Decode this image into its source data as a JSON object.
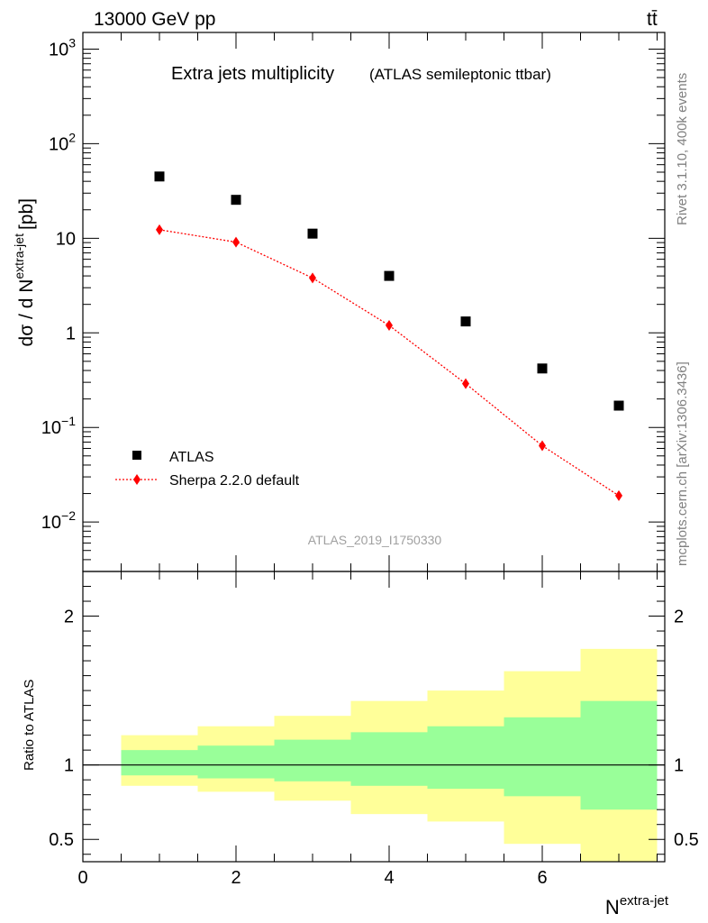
{
  "header": {
    "left": "13000 GeV pp",
    "right": "tt̄"
  },
  "side": {
    "rivet": "Rivet 3.1.10,  400k events",
    "mcplots": "mcplots.cern.ch [arXiv:1306.3436]"
  },
  "chart_data": [
    {
      "type": "scatter",
      "title": "Extra jets multiplicity",
      "subtitle": "(ATLAS semileptonic ttbar)",
      "watermark": "ATLAS_2019_I1750330",
      "ylabel_main": "dσ / d N",
      "ylabel_sup": "extra-jet",
      "ylabel_unit": "[pb]",
      "yscale": "log",
      "ylim": [
        0.003,
        1500
      ],
      "xlim": [
        0,
        7.6
      ],
      "y_ticks": [
        {
          "v": 0.01,
          "base": "10",
          "exp": "−2"
        },
        {
          "v": 0.1,
          "base": "10",
          "exp": "−1"
        },
        {
          "v": 1,
          "base": "1",
          "exp": ""
        },
        {
          "v": 10,
          "base": "10",
          "exp": ""
        },
        {
          "v": 100,
          "base": "10",
          "exp": "2"
        },
        {
          "v": 1000,
          "base": "10",
          "exp": "3"
        }
      ],
      "legend_position": "bottom-left",
      "series": [
        {
          "name": "ATLAS",
          "color": "#000000",
          "marker": "square",
          "x": [
            1,
            2,
            3,
            4,
            5,
            6,
            7
          ],
          "y": [
            45,
            25.5,
            11.2,
            4.0,
            1.32,
            0.42,
            0.17
          ]
        },
        {
          "name": "Sherpa 2.2.0 default",
          "color": "#ff0000",
          "marker": "diamond",
          "line": "dotted",
          "x": [
            1,
            2,
            3,
            4,
            5,
            6,
            7
          ],
          "y": [
            12.3,
            9.1,
            3.8,
            1.2,
            0.29,
            0.064,
            0.019
          ]
        }
      ]
    },
    {
      "type": "area",
      "ylabel": "Ratio to ATLAS",
      "xlabel_main": "N",
      "xlabel_sup": "extra-jet",
      "ylim": [
        0.35,
        2.3
      ],
      "xlim": [
        0,
        7.6
      ],
      "x_ticks": [
        "0",
        "2",
        "4",
        "6"
      ],
      "x_tick_values": [
        0,
        2,
        4,
        6
      ],
      "y_ticks": [
        "0.5",
        "1",
        "2"
      ],
      "y_tick_values": [
        0.5,
        1,
        2
      ],
      "reference": 1,
      "bins": [
        {
          "lo": 0.5,
          "hi": 1.5,
          "band_inner": [
            0.93,
            1.1
          ],
          "band_outer": [
            0.86,
            1.2
          ]
        },
        {
          "lo": 1.5,
          "hi": 2.5,
          "band_inner": [
            0.91,
            1.13
          ],
          "band_outer": [
            0.82,
            1.26
          ]
        },
        {
          "lo": 2.5,
          "hi": 3.5,
          "band_inner": [
            0.89,
            1.17
          ],
          "band_outer": [
            0.76,
            1.33
          ]
        },
        {
          "lo": 3.5,
          "hi": 4.5,
          "band_inner": [
            0.86,
            1.22
          ],
          "band_outer": [
            0.67,
            1.43
          ]
        },
        {
          "lo": 4.5,
          "hi": 5.5,
          "band_inner": [
            0.84,
            1.26
          ],
          "band_outer": [
            0.62,
            1.5
          ]
        },
        {
          "lo": 5.5,
          "hi": 6.5,
          "band_inner": [
            0.79,
            1.32
          ],
          "band_outer": [
            0.47,
            1.63
          ]
        },
        {
          "lo": 6.5,
          "hi": 7.5,
          "band_inner": [
            0.7,
            1.43
          ],
          "band_outer": [
            0.33,
            1.78
          ]
        }
      ],
      "colors": {
        "inner": "#99ff99",
        "outer": "#ffff99"
      }
    }
  ]
}
